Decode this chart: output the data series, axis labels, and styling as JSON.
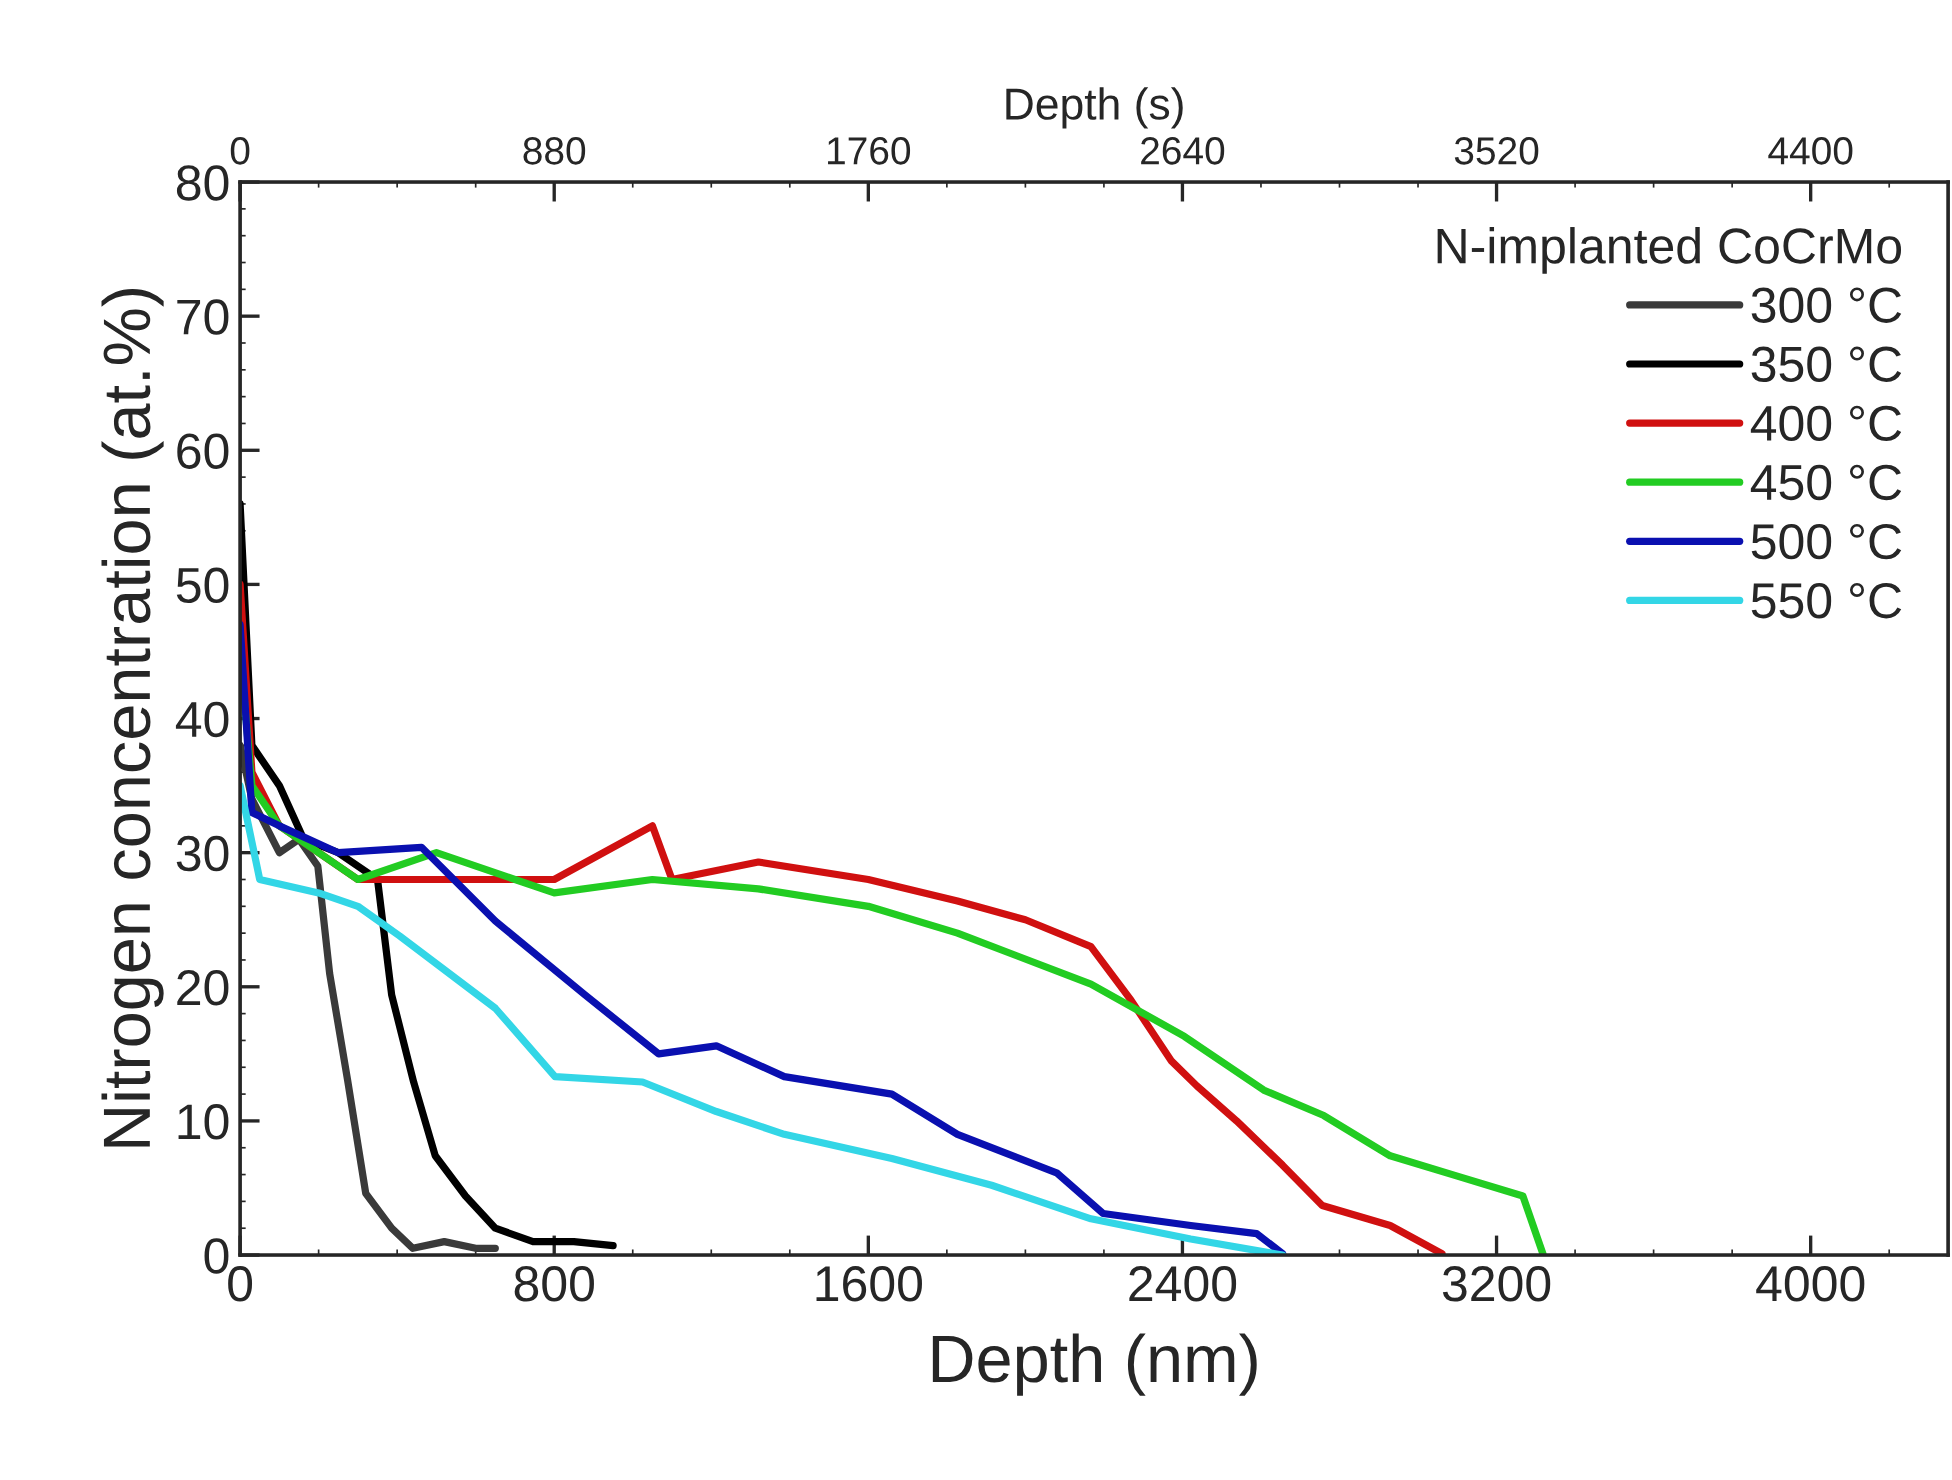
{
  "chart_data": {
    "type": "line",
    "xlabel": "Depth (nm)",
    "ylabel": "Nitrogen concentration (at.%)",
    "x2label": "Depth (s)",
    "legend_title": "N-implanted CoCrMo",
    "legend": "top right",
    "grid": false,
    "marker": "none",
    "line_style": "solid",
    "xlim": [
      0,
      4350
    ],
    "xticks": [
      0,
      800,
      1600,
      2400,
      3200,
      4000
    ],
    "x2lim": [
      0,
      4785
    ],
    "x2ticks": [
      0,
      880,
      1760,
      2640,
      3520,
      4400
    ],
    "ylim": [
      0,
      80
    ],
    "yticks": [
      0,
      10,
      20,
      30,
      40,
      50,
      60,
      70,
      80
    ],
    "series": [
      {
        "name": "300 °C",
        "color": "#3a3a3a",
        "x": [
          0,
          30,
          100,
          150,
          198,
          228,
          274,
          320,
          386,
          440,
          520,
          600,
          650
        ],
        "values": [
          38,
          34,
          30,
          31,
          29,
          21,
          13,
          4.6,
          2,
          0.5,
          1,
          0.5,
          0.5
        ]
      },
      {
        "name": "350 °C",
        "color": "#000000",
        "x": [
          0,
          30,
          100,
          162,
          250,
          350,
          386,
          442,
          497,
          574,
          650,
          746,
          850,
          950
        ],
        "values": [
          56,
          38,
          35,
          31,
          30,
          28,
          19.4,
          12.9,
          7.4,
          4.4,
          2,
          1,
          1,
          0.7
        ]
      },
      {
        "name": "400 °C",
        "color": "#d01010",
        "x": [
          0,
          30,
          100,
          300,
          500,
          800,
          1050,
          1100,
          1320,
          1600,
          1827,
          2000,
          2167,
          2269,
          2371,
          2437,
          2538,
          2655,
          2756,
          2929,
          3061
        ],
        "values": [
          50,
          36,
          32,
          28,
          28,
          28,
          32,
          28,
          29.3,
          28,
          26.4,
          25,
          23,
          19,
          14.5,
          12.6,
          10,
          6.7,
          3.7,
          2.2,
          0.1
        ]
      },
      {
        "name": "450 °C",
        "color": "#22cc22",
        "x": [
          0,
          30,
          100,
          300,
          500,
          800,
          1050,
          1320,
          1600,
          1827,
          2167,
          2405,
          2607,
          2760,
          2929,
          3098,
          3267,
          3318
        ],
        "values": [
          45,
          35,
          32,
          28,
          30,
          27,
          28,
          27.3,
          26,
          24,
          20.2,
          16.3,
          12.3,
          10.4,
          7.4,
          5.9,
          4.4,
          0.1
        ]
      },
      {
        "name": "500 °C",
        "color": "#0a10b0",
        "x": [
          0,
          30,
          100,
          250,
          462,
          650,
          878,
          1066,
          1213,
          1386,
          1660,
          1827,
          2081,
          2198,
          2421,
          2589,
          2655
        ],
        "values": [
          47,
          33,
          32,
          30,
          30.4,
          24.9,
          19.4,
          15,
          15.6,
          13.3,
          12,
          9,
          6.1,
          3.1,
          2.2,
          1.6,
          0.1
        ]
      },
      {
        "name": "550 °C",
        "color": "#33d6e6",
        "x": [
          0,
          50,
          200,
          300,
          406,
          650,
          802,
          1025,
          1213,
          1386,
          1660,
          1914,
          2167,
          2421,
          2655
        ],
        "values": [
          35,
          28,
          27,
          26,
          23.8,
          18.4,
          13.3,
          12.9,
          10.7,
          9,
          7.2,
          5.2,
          2.7,
          1.2,
          0
        ]
      }
    ]
  }
}
